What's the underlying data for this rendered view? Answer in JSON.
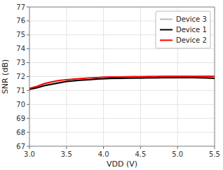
{
  "chart_data": {
    "type": "line",
    "x_label": "VDD (V)",
    "y_label": "SNR (dB)",
    "x": [
      3.0,
      3.1,
      3.2,
      3.3,
      3.4,
      3.5,
      3.6,
      3.7,
      3.8,
      3.9,
      4.0,
      4.1,
      4.2,
      4.3,
      4.4,
      4.5,
      4.6,
      4.7,
      4.8,
      4.9,
      5.0,
      5.1,
      5.2,
      5.3,
      5.4,
      5.5
    ],
    "series": [
      {
        "name": "Device 3",
        "color": "#bbbbbb",
        "values": [
          71.05,
          71.2,
          71.38,
          71.5,
          71.6,
          71.65,
          71.7,
          71.74,
          71.77,
          71.8,
          71.83,
          71.85,
          71.86,
          71.87,
          71.88,
          71.89,
          71.9,
          71.9,
          71.9,
          71.9,
          71.91,
          71.91,
          71.92,
          71.92,
          71.93,
          71.93
        ]
      },
      {
        "name": "Device 1",
        "color": "#000000",
        "values": [
          71.1,
          71.2,
          71.35,
          71.45,
          71.55,
          71.65,
          71.7,
          71.75,
          71.78,
          71.82,
          71.85,
          71.87,
          71.88,
          71.89,
          71.9,
          71.9,
          71.91,
          71.91,
          71.92,
          71.92,
          71.92,
          71.92,
          71.92,
          71.91,
          71.9,
          71.88
        ]
      },
      {
        "name": "Device 2",
        "color": "#ff0000",
        "values": [
          71.15,
          71.3,
          71.5,
          71.62,
          71.72,
          71.78,
          71.82,
          71.86,
          71.9,
          71.93,
          71.96,
          71.97,
          71.98,
          71.99,
          72.0,
          72.0,
          72.01,
          72.01,
          72.02,
          72.02,
          72.02,
          72.03,
          72.03,
          72.03,
          72.03,
          72.03
        ]
      }
    ],
    "xlim": [
      3,
      5.5
    ],
    "ylim": [
      67,
      77
    ],
    "xticks": [
      {
        "value": 3,
        "label": "3.0"
      },
      3.5,
      {
        "value": 4,
        "label": "4.0"
      },
      4.5,
      {
        "value": 5,
        "label": "5.0"
      },
      5.5
    ],
    "yticks": [
      67,
      68,
      69,
      70,
      71,
      72,
      73,
      74,
      75,
      76,
      77
    ],
    "grid": true,
    "legend": "upper right"
  }
}
